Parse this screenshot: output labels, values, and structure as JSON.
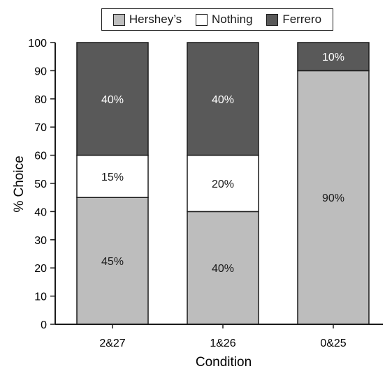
{
  "chart_data": {
    "type": "bar",
    "stacked": true,
    "categories": [
      "2&27",
      "1&26",
      "0&25"
    ],
    "series": [
      {
        "name": "Hershey’s",
        "values": [
          45,
          40,
          90
        ],
        "labels": [
          "45%",
          "40%",
          "90%"
        ],
        "color": "#bdbdbd",
        "label_color": "#1a1a1a"
      },
      {
        "name": "Nothing",
        "values": [
          15,
          20,
          0
        ],
        "labels": [
          "15%",
          "20%",
          ""
        ],
        "color": "#ffffff",
        "label_color": "#1a1a1a"
      },
      {
        "name": "Ferrero",
        "values": [
          40,
          40,
          10
        ],
        "labels": [
          "40%",
          "40%",
          "10%"
        ],
        "color": "#595959",
        "label_color": "#ffffff"
      }
    ],
    "xlabel": "Condition",
    "ylabel": "% Choice",
    "ylim": [
      0,
      100
    ],
    "yticks": [
      0,
      10,
      20,
      30,
      40,
      50,
      60,
      70,
      80,
      90,
      100
    ],
    "legend_position": "top",
    "grid": false
  }
}
